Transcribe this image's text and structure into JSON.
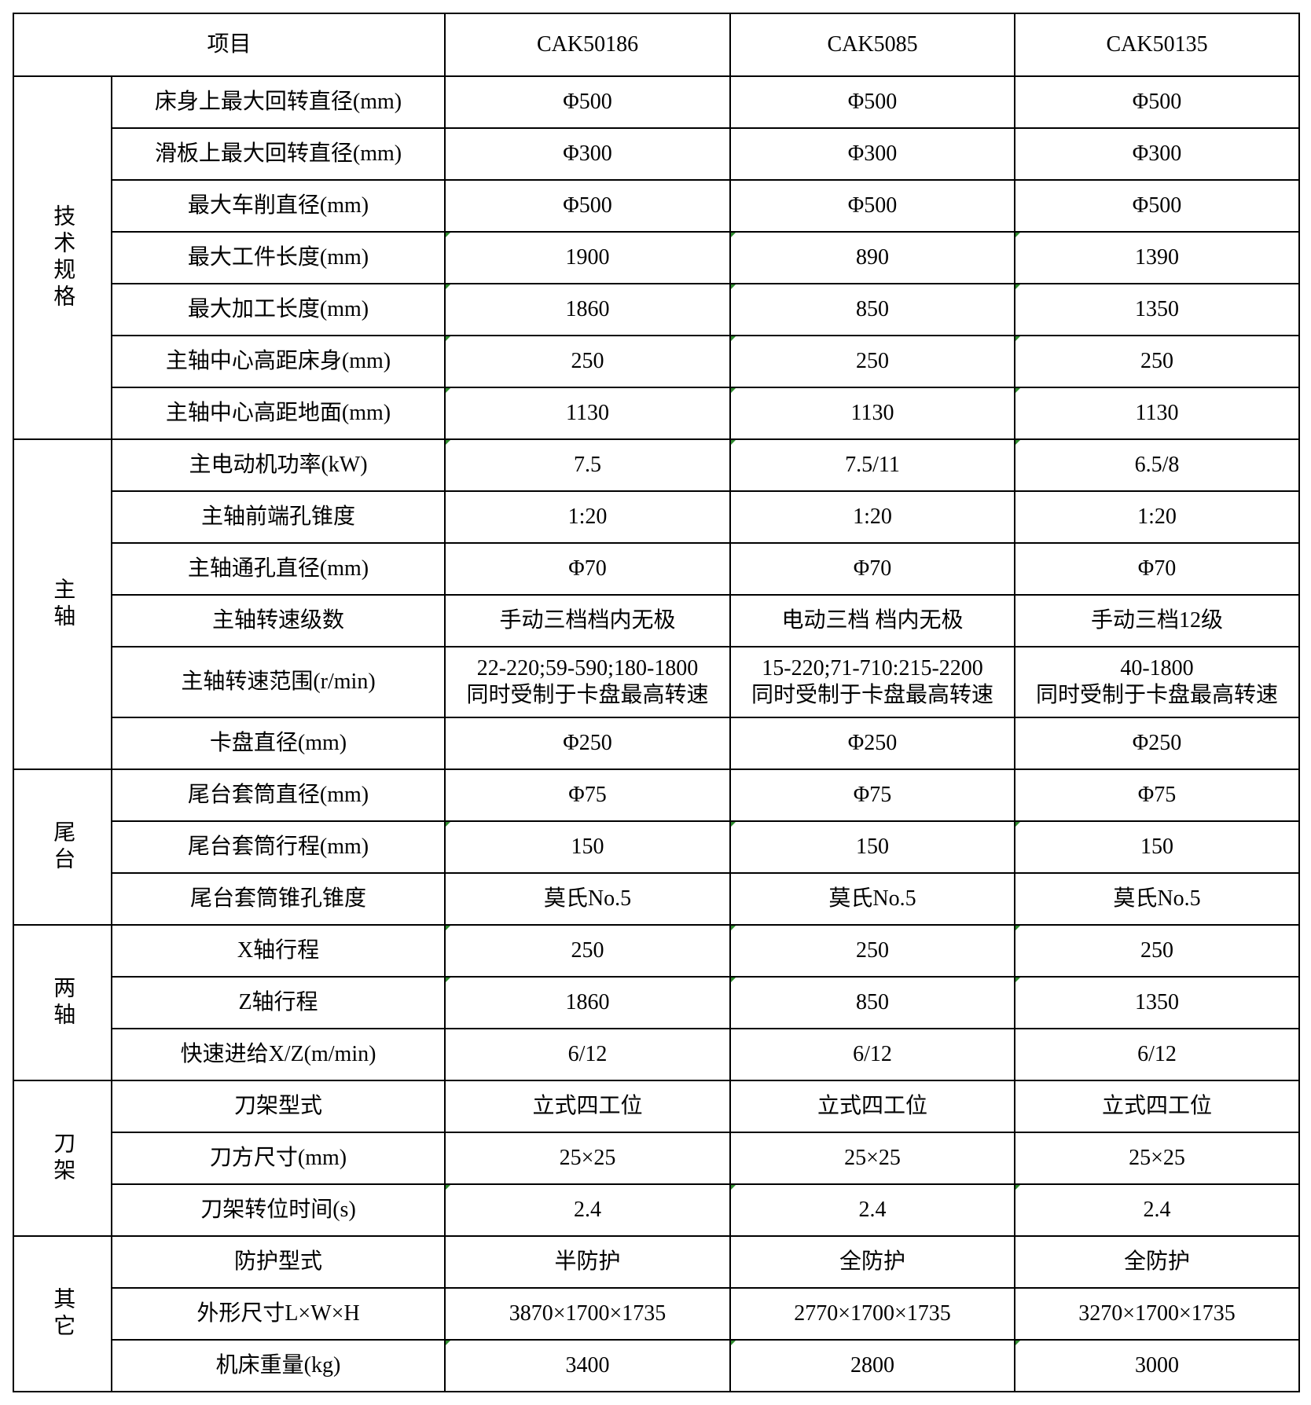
{
  "header": {
    "item": "项目",
    "models": [
      "CAK50186",
      "CAK5085",
      "CAK50135"
    ]
  },
  "marker_color": "#2e8b2e",
  "groups": [
    {
      "label": "技术规格",
      "rows": [
        {
          "name": "床身上最大回转直径(mm)",
          "values": [
            "Φ500",
            "Φ500",
            "Φ500"
          ]
        },
        {
          "name": "滑板上最大回转直径(mm)",
          "values": [
            "Φ300",
            "Φ300",
            "Φ300"
          ]
        },
        {
          "name": "最大车削直径(mm)",
          "values": [
            "Φ500",
            "Φ500",
            "Φ500"
          ]
        },
        {
          "name": "最大工件长度(mm)",
          "values": [
            "1900",
            "890",
            "1390"
          ],
          "mark": true
        },
        {
          "name": "最大加工长度(mm)",
          "values": [
            "1860",
            "850",
            "1350"
          ],
          "mark": true
        },
        {
          "name": "主轴中心高距床身(mm)",
          "values": [
            "250",
            "250",
            "250"
          ],
          "mark": true
        },
        {
          "name": "主轴中心高距地面(mm)",
          "values": [
            "1130",
            "1130",
            "1130"
          ],
          "mark": true
        }
      ]
    },
    {
      "label": "主轴",
      "rows": [
        {
          "name": "主电动机功率(kW)",
          "values": [
            "7.5",
            "7.5/11",
            "6.5/8"
          ],
          "mark": true
        },
        {
          "name": "主轴前端孔锥度",
          "values": [
            "1:20",
            "1:20",
            "1:20"
          ]
        },
        {
          "name": "主轴通孔直径(mm)",
          "values": [
            "Φ70",
            "Φ70",
            "Φ70"
          ]
        },
        {
          "name": "主轴转速级数",
          "values": [
            "手动三档档内无极",
            "电动三档 档内无极",
            "手动三档12级"
          ]
        },
        {
          "name": "主轴转速范围(r/min)",
          "tall": true,
          "values": [
            "22-220;59-590;180-1800\n同时受制于卡盘最高转速",
            "15-220;71-710:215-2200\n同时受制于卡盘最高转速",
            "40-1800\n同时受制于卡盘最高转速"
          ]
        },
        {
          "name": "卡盘直径(mm)",
          "values": [
            "Φ250",
            "Φ250",
            "Φ250"
          ]
        }
      ]
    },
    {
      "label": "尾台",
      "rows": [
        {
          "name": "尾台套筒直径(mm)",
          "values": [
            "Φ75",
            "Φ75",
            "Φ75"
          ]
        },
        {
          "name": "尾台套筒行程(mm)",
          "values": [
            "150",
            "150",
            "150"
          ],
          "mark": true
        },
        {
          "name": "尾台套筒锥孔锥度",
          "values": [
            "莫氏No.5",
            "莫氏No.5",
            "莫氏No.5"
          ]
        }
      ]
    },
    {
      "label": "两轴",
      "rows": [
        {
          "name": "X轴行程",
          "values": [
            "250",
            "250",
            "250"
          ],
          "mark": true
        },
        {
          "name": "Z轴行程",
          "values": [
            "1860",
            "850",
            "1350"
          ],
          "mark": true
        },
        {
          "name": "快速进给X/Z(m/min)",
          "values": [
            "6/12",
            "6/12",
            "6/12"
          ]
        }
      ]
    },
    {
      "label": "刀架",
      "rows": [
        {
          "name": "刀架型式",
          "values": [
            "立式四工位",
            "立式四工位",
            "立式四工位"
          ]
        },
        {
          "name": "刀方尺寸(mm)",
          "values": [
            "25×25",
            "25×25",
            "25×25"
          ]
        },
        {
          "name": "刀架转位时间(s)",
          "values": [
            "2.4",
            "2.4",
            "2.4"
          ],
          "mark": true
        }
      ]
    },
    {
      "label": "其它",
      "rows": [
        {
          "name": "防护型式",
          "values": [
            "半防护",
            "全防护",
            "全防护"
          ]
        },
        {
          "name": "外形尺寸L×W×H",
          "values": [
            "3870×1700×1735",
            "2770×1700×1735",
            "3270×1700×1735"
          ]
        },
        {
          "name": "机床重量(kg)",
          "values": [
            "3400",
            "2800",
            "3000"
          ],
          "mark": true
        }
      ]
    }
  ]
}
